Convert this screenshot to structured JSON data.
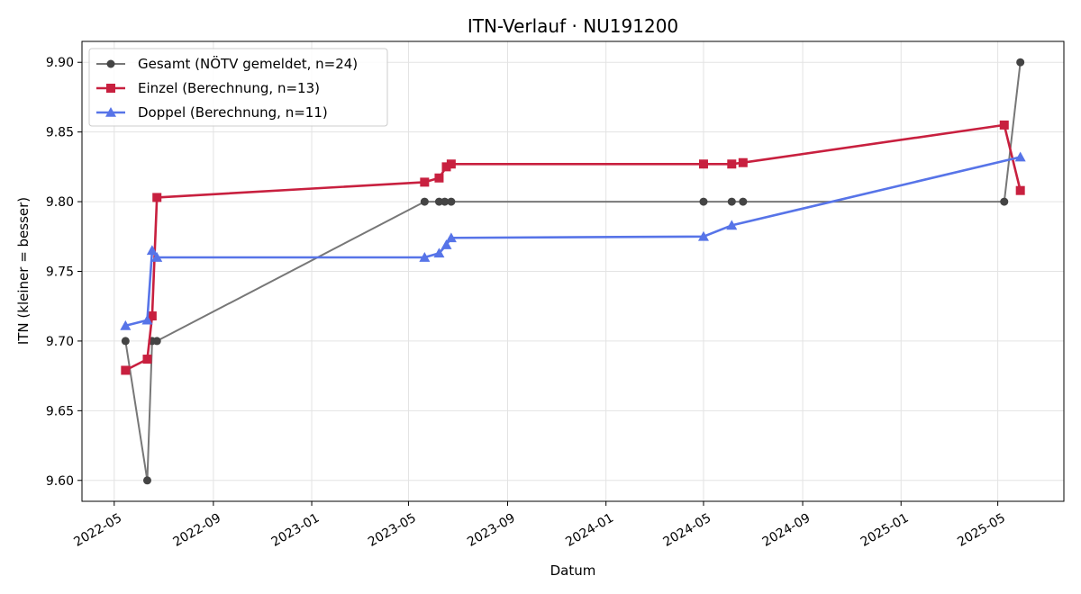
{
  "chart_data": {
    "type": "line",
    "title": "ITN-Verlauf · NU191200",
    "xlabel": "Datum",
    "ylabel": "ITN  (kleiner = besser)",
    "x_axis_type": "date",
    "xlim": [
      "2022-03-22",
      "2025-07-22"
    ],
    "ylim": [
      9.585,
      9.915
    ],
    "x_ticks": [
      "2022-05-01",
      "2022-09-01",
      "2023-01-01",
      "2023-05-01",
      "2023-09-01",
      "2024-01-01",
      "2024-05-01",
      "2024-09-01",
      "2025-01-01",
      "2025-05-01"
    ],
    "x_tick_labels": [
      "2022-05",
      "2022-09",
      "2023-01",
      "2023-05",
      "2023-09",
      "2024-01",
      "2024-05",
      "2024-09",
      "2025-01",
      "2025-05"
    ],
    "y_ticks": [
      9.6,
      9.65,
      9.7,
      9.75,
      9.8,
      9.85,
      9.9
    ],
    "y_tick_labels": [
      "9.60",
      "9.65",
      "9.70",
      "9.75",
      "9.80",
      "9.85",
      "9.90"
    ],
    "grid": true,
    "legend_position": "top-left",
    "series": [
      {
        "name": "Gesamt (NÖTV gemeldet, n=24)",
        "color": "#777777",
        "marker_color": "#444444",
        "marker": "circle",
        "points": [
          {
            "x": "2022-05-15",
            "y": 9.7
          },
          {
            "x": "2022-06-11",
            "y": 9.6
          },
          {
            "x": "2022-06-17",
            "y": 9.7
          },
          {
            "x": "2022-06-23",
            "y": 9.7
          },
          {
            "x": "2023-05-21",
            "y": 9.8
          },
          {
            "x": "2023-06-08",
            "y": 9.8
          },
          {
            "x": "2023-06-15",
            "y": 9.8
          },
          {
            "x": "2023-06-23",
            "y": 9.8
          },
          {
            "x": "2024-05-01",
            "y": 9.8
          },
          {
            "x": "2024-06-05",
            "y": 9.8
          },
          {
            "x": "2024-06-19",
            "y": 9.8
          },
          {
            "x": "2025-05-09",
            "y": 9.8
          },
          {
            "x": "2025-05-29",
            "y": 9.9
          }
        ]
      },
      {
        "name": "Einzel (Berechnung, n=13)",
        "color": "#c8203f",
        "marker_color": "#c8203f",
        "marker": "square",
        "points": [
          {
            "x": "2022-05-15",
            "y": 9.679
          },
          {
            "x": "2022-06-11",
            "y": 9.687
          },
          {
            "x": "2022-06-17",
            "y": 9.718
          },
          {
            "x": "2022-06-23",
            "y": 9.803
          },
          {
            "x": "2023-05-21",
            "y": 9.814
          },
          {
            "x": "2023-06-08",
            "y": 9.817
          },
          {
            "x": "2023-06-17",
            "y": 9.825
          },
          {
            "x": "2023-06-23",
            "y": 9.827
          },
          {
            "x": "2024-05-01",
            "y": 9.827
          },
          {
            "x": "2024-06-05",
            "y": 9.827
          },
          {
            "x": "2024-06-19",
            "y": 9.828
          },
          {
            "x": "2025-05-09",
            "y": 9.855
          },
          {
            "x": "2025-05-29",
            "y": 9.808
          }
        ]
      },
      {
        "name": "Doppel (Berechnung, n=11)",
        "color": "#5774e8",
        "marker_color": "#5774e8",
        "marker": "triangle",
        "points": [
          {
            "x": "2022-05-15",
            "y": 9.711
          },
          {
            "x": "2022-06-11",
            "y": 9.715
          },
          {
            "x": "2022-06-17",
            "y": 9.765
          },
          {
            "x": "2022-06-23",
            "y": 9.76
          },
          {
            "x": "2023-05-21",
            "y": 9.76
          },
          {
            "x": "2023-06-08",
            "y": 9.763
          },
          {
            "x": "2023-06-17",
            "y": 9.769
          },
          {
            "x": "2023-06-23",
            "y": 9.774
          },
          {
            "x": "2024-05-01",
            "y": 9.775
          },
          {
            "x": "2024-06-05",
            "y": 9.783
          },
          {
            "x": "2025-05-29",
            "y": 9.832
          }
        ]
      }
    ]
  }
}
